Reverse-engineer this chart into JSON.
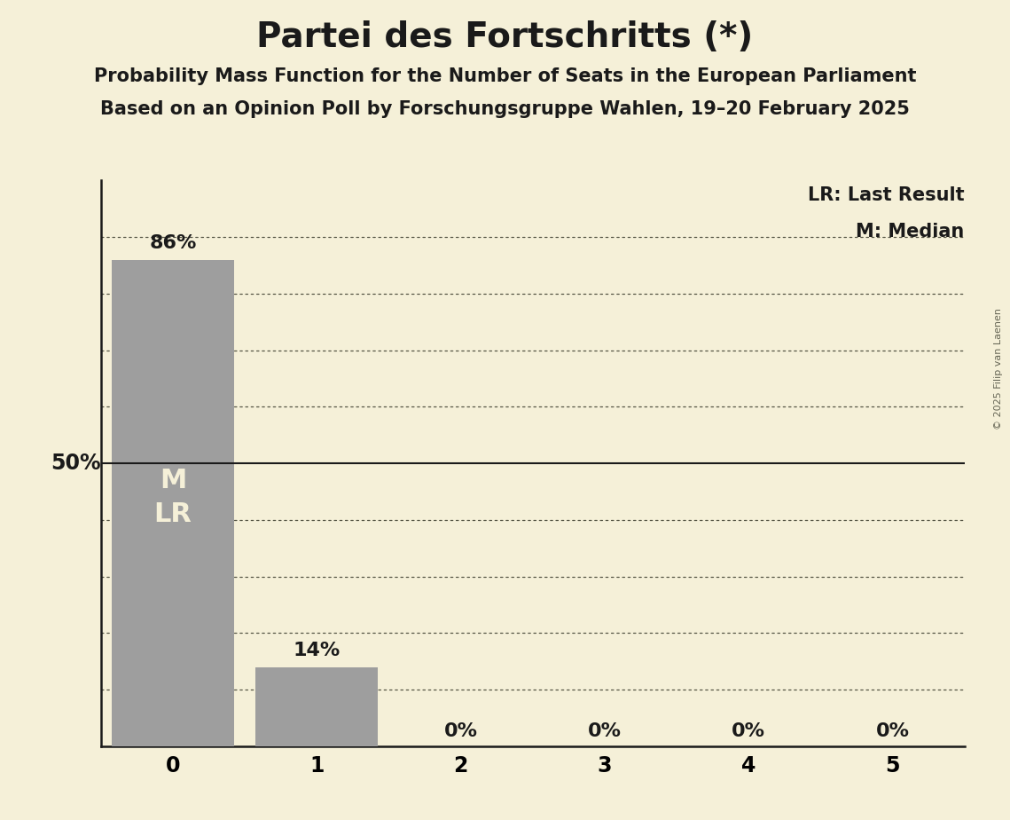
{
  "title": "Partei des Fortschritts (*)",
  "subtitle1": "Probability Mass Function for the Number of Seats in the European Parliament",
  "subtitle2": "Based on an Opinion Poll by Forschungsgruppe Wahlen, 19–20 February 2025",
  "copyright": "© 2025 Filip van Laenen",
  "categories": [
    0,
    1,
    2,
    3,
    4,
    5
  ],
  "values": [
    0.86,
    0.14,
    0.0,
    0.0,
    0.0,
    0.0
  ],
  "bar_color": "#9e9e9e",
  "background_color": "#f5f0d8",
  "bar_labels": [
    "86%",
    "14%",
    "0%",
    "0%",
    "0%",
    "0%"
  ],
  "median_seat": 0,
  "last_result_seat": 0,
  "fifty_pct_label": "50%",
  "dotted_levels": [
    0.1,
    0.2,
    0.3,
    0.4,
    0.6,
    0.7,
    0.8,
    0.9
  ],
  "solid_level": 0.5,
  "legend_lr": "LR: Last Result",
  "legend_m": "M: Median",
  "bar_label_inside_color": "#f5f0d8",
  "bar_label_outside_color": "#1a1a1a",
  "title_fontsize": 28,
  "subtitle_fontsize": 15,
  "label_fontsize": 16,
  "tick_fontsize": 17,
  "legend_fontsize": 15,
  "ylabel_fontsize": 17,
  "ml_fontsize": 22
}
